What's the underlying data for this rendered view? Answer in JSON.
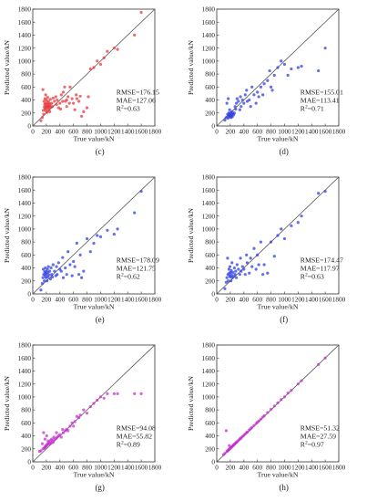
{
  "chart_data": [
    {
      "panel": "(c)",
      "type": "scatter",
      "xlabel": "True value/kN",
      "ylabel": "Predicted value/kN",
      "xlim": [
        0,
        1800
      ],
      "ylim": [
        0,
        1800
      ],
      "ticks": [
        0,
        200,
        400,
        600,
        800,
        1000,
        1200,
        1400,
        1600,
        1800
      ],
      "marker_color": "#e8383d",
      "metrics": [
        "RMSE=176.15",
        "MAE=127.06",
        "R2=0.63"
      ],
      "series": [
        {
          "x": [
            120,
            140,
            150,
            155,
            160,
            165,
            170,
            175,
            180,
            180,
            185,
            190,
            190,
            195,
            200,
            200,
            205,
            210,
            210,
            215,
            220,
            220,
            225,
            230,
            230,
            235,
            240,
            245,
            250,
            250,
            255,
            260,
            270,
            280,
            290,
            300,
            320,
            340,
            350,
            360,
            380,
            400,
            410,
            420,
            440,
            450,
            470,
            480,
            500,
            500,
            520,
            540,
            550,
            580,
            600,
            620,
            640,
            650,
            680,
            700,
            720,
            750,
            800,
            820,
            850,
            900,
            950,
            1000,
            1050,
            1100,
            1200,
            1250,
            1500,
            1600
          ],
          "y": [
            80,
            130,
            560,
            240,
            180,
            380,
            290,
            330,
            420,
            260,
            350,
            300,
            480,
            230,
            270,
            400,
            330,
            300,
            210,
            360,
            290,
            440,
            320,
            250,
            380,
            310,
            280,
            350,
            300,
            220,
            330,
            410,
            290,
            350,
            300,
            430,
            380,
            450,
            330,
            400,
            280,
            350,
            260,
            480,
            380,
            520,
            600,
            380,
            400,
            300,
            450,
            350,
            600,
            420,
            350,
            250,
            480,
            420,
            380,
            460,
            150,
            220,
            280,
            450,
            880,
            900,
            1000,
            950,
            1050,
            1150,
            1200,
            1180,
            1400,
            1750
          ]
        }
      ]
    },
    {
      "panel": "(d)",
      "type": "scatter",
      "xlabel": "True value/kN",
      "ylabel": "Predicted value/kN",
      "xlim": [
        0,
        1800
      ],
      "ylim": [
        0,
        1800
      ],
      "ticks": [
        0,
        200,
        400,
        600,
        800,
        1000,
        1200,
        1400,
        1600,
        1800
      ],
      "marker_color": "#2f3fe0",
      "metrics": [
        "RMSE=155.01",
        "MAE=113.41",
        "R2=0.71"
      ],
      "series": [
        {
          "x": [
            120,
            140,
            150,
            160,
            165,
            170,
            175,
            180,
            185,
            190,
            195,
            200,
            205,
            210,
            215,
            220,
            225,
            230,
            240,
            250,
            260,
            270,
            280,
            290,
            300,
            320,
            340,
            350,
            360,
            380,
            400,
            420,
            440,
            450,
            480,
            500,
            520,
            550,
            580,
            600,
            620,
            650,
            680,
            700,
            750,
            780,
            800,
            820,
            850,
            900,
            950,
            1000,
            1050,
            1100,
            1200,
            1250,
            1500,
            1600
          ],
          "y": [
            90,
            130,
            350,
            180,
            120,
            420,
            160,
            200,
            140,
            250,
            170,
            150,
            200,
            130,
            180,
            160,
            220,
            140,
            190,
            170,
            200,
            300,
            260,
            350,
            420,
            380,
            250,
            450,
            300,
            400,
            350,
            480,
            550,
            380,
            400,
            300,
            600,
            480,
            350,
            520,
            450,
            600,
            480,
            650,
            700,
            850,
            600,
            550,
            780,
            900,
            1000,
            950,
            780,
            880,
            900,
            920,
            850,
            1200
          ]
        }
      ]
    },
    {
      "panel": "(e)",
      "type": "scatter",
      "xlabel": "True value/kN",
      "ylabel": "Predicted value/kN",
      "xlim": [
        0,
        1800
      ],
      "ylim": [
        0,
        1800
      ],
      "ticks": [
        0,
        200,
        400,
        600,
        800,
        1000,
        1200,
        1400,
        1600,
        1800
      ],
      "marker_color": "#2f3fe0",
      "metrics": [
        "RMSE=178.09",
        "MAE=121.75",
        "R2=0.62"
      ],
      "series": [
        {
          "x": [
            120,
            140,
            150,
            155,
            160,
            170,
            175,
            180,
            185,
            190,
            195,
            200,
            205,
            210,
            215,
            220,
            225,
            230,
            240,
            250,
            260,
            270,
            280,
            290,
            300,
            320,
            340,
            350,
            360,
            380,
            400,
            420,
            440,
            450,
            480,
            500,
            520,
            550,
            580,
            600,
            620,
            650,
            680,
            700,
            720,
            750,
            800,
            850,
            900,
            950,
            1000,
            1100,
            1200,
            1250,
            1500,
            1600
          ],
          "y": [
            60,
            160,
            250,
            380,
            300,
            200,
            340,
            280,
            400,
            320,
            250,
            350,
            300,
            200,
            380,
            260,
            330,
            420,
            290,
            350,
            230,
            400,
            300,
            260,
            450,
            350,
            280,
            420,
            300,
            480,
            380,
            350,
            560,
            250,
            400,
            300,
            650,
            450,
            280,
            500,
            420,
            780,
            300,
            600,
            250,
            350,
            850,
            650,
            780,
            900,
            880,
            980,
            920,
            1000,
            1250,
            1580
          ]
        }
      ]
    },
    {
      "panel": "(f)",
      "type": "scatter",
      "xlabel": "True value/kN",
      "ylabel": "Predicted value/kN",
      "xlim": [
        0,
        1800
      ],
      "ylim": [
        0,
        1800
      ],
      "ticks": [
        0,
        200,
        400,
        600,
        800,
        1000,
        1200,
        1400,
        1600,
        1800
      ],
      "marker_color": "#2f3fe0",
      "metrics": [
        "RMSE=174.47",
        "MAE=117.97",
        "R2=0.63"
      ],
      "series": [
        {
          "x": [
            120,
            140,
            150,
            160,
            165,
            170,
            180,
            185,
            190,
            195,
            200,
            205,
            210,
            215,
            220,
            225,
            230,
            240,
            250,
            260,
            270,
            280,
            290,
            300,
            320,
            340,
            350,
            360,
            380,
            400,
            420,
            440,
            450,
            480,
            500,
            520,
            550,
            580,
            600,
            620,
            650,
            680,
            700,
            750,
            800,
            850,
            900,
            950,
            1000,
            1100,
            1200,
            1250,
            1500,
            1600
          ],
          "y": [
            80,
            180,
            250,
            550,
            300,
            200,
            380,
            320,
            280,
            420,
            260,
            330,
            200,
            360,
            290,
            480,
            250,
            330,
            270,
            400,
            300,
            350,
            250,
            450,
            380,
            300,
            550,
            350,
            420,
            380,
            300,
            600,
            480,
            320,
            550,
            420,
            700,
            380,
            600,
            450,
            800,
            300,
            450,
            320,
            800,
            580,
            900,
            1000,
            850,
            1050,
            1100,
            1200,
            1550,
            1580
          ]
        }
      ]
    },
    {
      "panel": "(g)",
      "type": "scatter",
      "xlabel": "True value/kN",
      "ylabel": "Predicted value/kN",
      "xlim": [
        0,
        1800
      ],
      "ylim": [
        0,
        1800
      ],
      "ticks": [
        0,
        200,
        400,
        600,
        800,
        1000,
        1200,
        1400,
        1600,
        1800
      ],
      "marker_color": "#c62fd0",
      "metrics": [
        "RMSE=94.08",
        "MAE=55.82",
        "R2=0.89"
      ],
      "series": [
        {
          "x": [
            100,
            120,
            140,
            150,
            160,
            170,
            175,
            180,
            185,
            190,
            200,
            205,
            210,
            220,
            225,
            230,
            240,
            250,
            260,
            270,
            280,
            290,
            300,
            310,
            320,
            340,
            350,
            360,
            380,
            400,
            420,
            440,
            450,
            480,
            500,
            520,
            550,
            580,
            600,
            620,
            650,
            680,
            700,
            750,
            800,
            850,
            900,
            950,
            1000,
            1050,
            1100,
            1200,
            1250,
            1500,
            1600
          ],
          "y": [
            160,
            170,
            280,
            200,
            450,
            210,
            220,
            350,
            230,
            250,
            240,
            400,
            260,
            280,
            320,
            270,
            300,
            280,
            330,
            290,
            350,
            320,
            300,
            380,
            340,
            360,
            450,
            380,
            400,
            420,
            380,
            500,
            450,
            480,
            500,
            480,
            550,
            600,
            550,
            620,
            700,
            680,
            720,
            800,
            750,
            850,
            900,
            950,
            1000,
            980,
            1050,
            1050,
            1050,
            1050,
            1050
          ]
        }
      ]
    },
    {
      "panel": "(h)",
      "type": "scatter",
      "xlabel": "True value/kN",
      "ylabel": "Predicted value/kN",
      "xlim": [
        0,
        1800
      ],
      "ylim": [
        0,
        1800
      ],
      "ticks": [
        0,
        200,
        400,
        600,
        800,
        1000,
        1200,
        1400,
        1600,
        1800
      ],
      "marker_color": "#c62fd0",
      "metrics": [
        "RMSE=51.32",
        "MAE=27.59",
        "R2=0.97"
      ],
      "series": [
        {
          "x": [
            100,
            120,
            140,
            150,
            160,
            170,
            180,
            185,
            190,
            200,
            210,
            220,
            230,
            240,
            250,
            260,
            270,
            280,
            290,
            300,
            320,
            340,
            350,
            360,
            380,
            400,
            420,
            440,
            450,
            480,
            500,
            520,
            550,
            580,
            600,
            620,
            650,
            680,
            700,
            750,
            800,
            850,
            900,
            950,
            1000,
            1050,
            1100,
            1200,
            1250,
            1500,
            1600
          ],
          "y": [
            110,
            130,
            480,
            160,
            170,
            180,
            190,
            250,
            200,
            210,
            220,
            230,
            240,
            250,
            260,
            270,
            280,
            290,
            300,
            310,
            330,
            350,
            360,
            370,
            390,
            410,
            430,
            450,
            460,
            490,
            510,
            530,
            560,
            590,
            610,
            630,
            660,
            690,
            710,
            760,
            810,
            860,
            910,
            960,
            1000,
            1060,
            1100,
            1200,
            1250,
            1500,
            1600
          ]
        }
      ]
    }
  ]
}
